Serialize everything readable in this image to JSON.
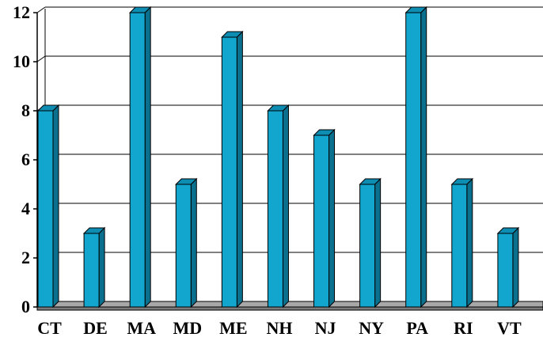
{
  "chart_data": {
    "type": "bar",
    "title": "",
    "xlabel": "",
    "ylabel": "",
    "categories": [
      "CT",
      "DE",
      "MA",
      "MD",
      "ME",
      "NH",
      "NJ",
      "NY",
      "PA",
      "RI",
      "VT"
    ],
    "values": [
      8,
      3,
      12,
      5,
      11,
      8,
      7,
      5,
      12,
      5,
      3
    ],
    "ylim": [
      0,
      12
    ],
    "yticks": [
      0,
      2,
      4,
      6,
      8,
      10,
      12
    ],
    "grid": true,
    "legend": "none",
    "style": "3d-column"
  },
  "colors": {
    "bar_front": "#12A6CF",
    "bar_side": "#0B6F8E",
    "bar_top": "#0E8DB3",
    "bar_outline": "#000000",
    "floor": "#A8A8A8",
    "grid": "#000000",
    "background": "#FFFFFF"
  }
}
